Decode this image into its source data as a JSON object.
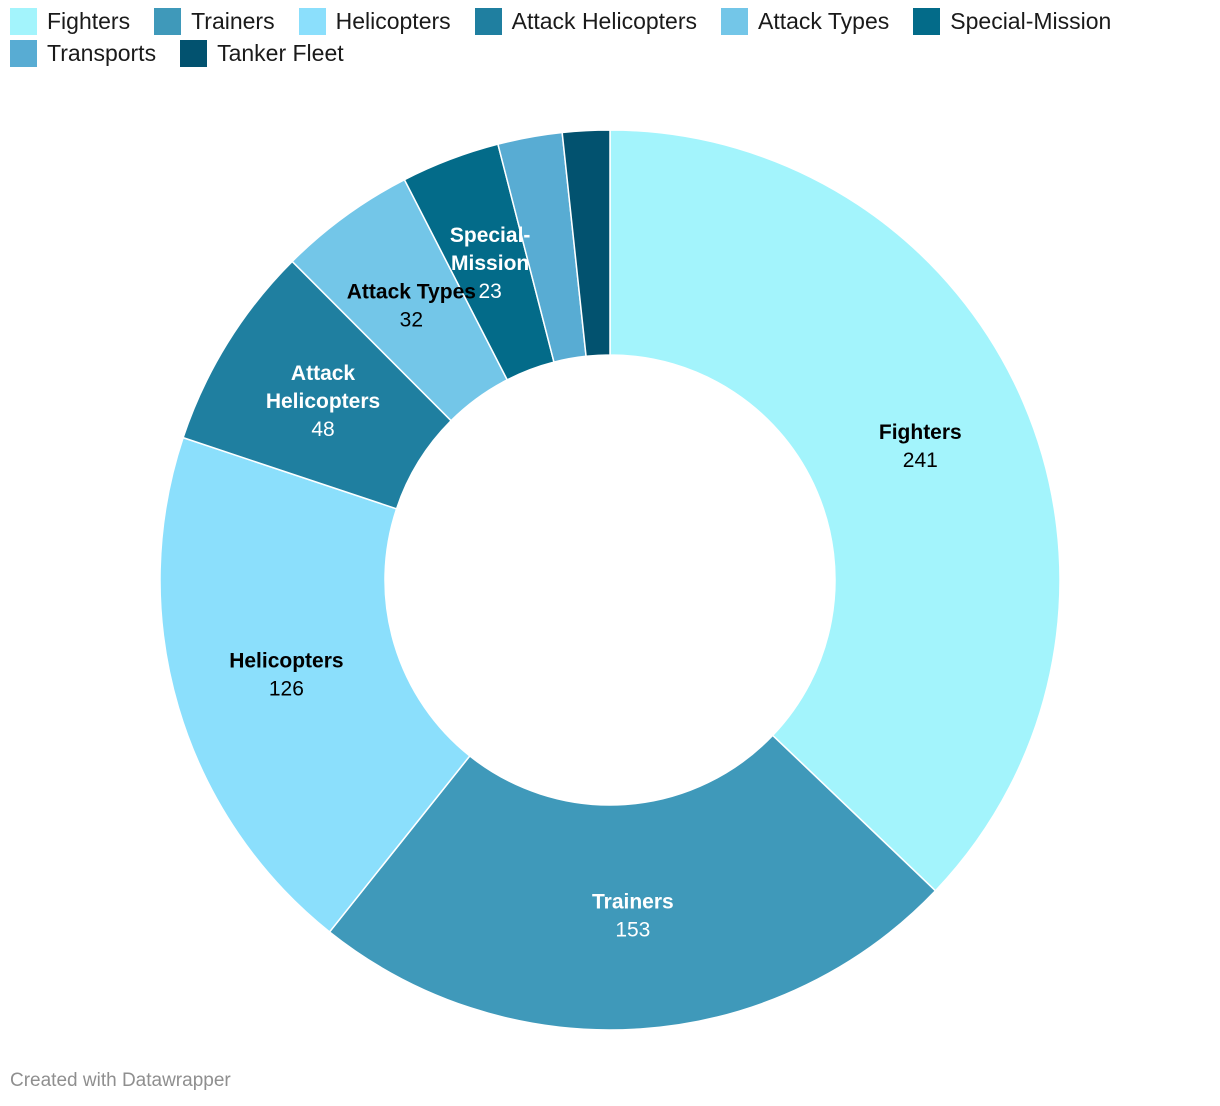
{
  "chart_data": {
    "type": "pie",
    "donut": true,
    "legend_position": "top-left",
    "categories": [
      "Fighters",
      "Trainers",
      "Helicopters",
      "Attack Helicopters",
      "Attack Types",
      "Special-Mission",
      "Transports",
      "Tanker Fleet"
    ],
    "values": [
      241,
      153,
      126,
      48,
      32,
      23,
      15,
      11
    ],
    "colors": [
      "#a3f4fc",
      "#3f99ba",
      "#8bdffc",
      "#1f7fa0",
      "#73c6e8",
      "#036b89",
      "#58acd3",
      "#02526f"
    ],
    "label_colors": [
      "#000000",
      "#ffffff",
      "#000000",
      "#ffffff",
      "#000000",
      "#ffffff",
      "#ffffff",
      "#ffffff"
    ],
    "slice_labels": [
      {
        "name": [
          "Fighters"
        ],
        "value": "241"
      },
      {
        "name": [
          "Trainers"
        ],
        "value": "153"
      },
      {
        "name": [
          "Helicopters"
        ],
        "value": "126"
      },
      {
        "name": [
          "Attack",
          "Helicopters"
        ],
        "value": "48"
      },
      {
        "name": [
          "Attack Types"
        ],
        "value": "32"
      },
      {
        "name": [
          "Special-",
          "Mission"
        ],
        "value": "23"
      },
      null,
      null
    ]
  },
  "footer": "Created with Datawrapper"
}
